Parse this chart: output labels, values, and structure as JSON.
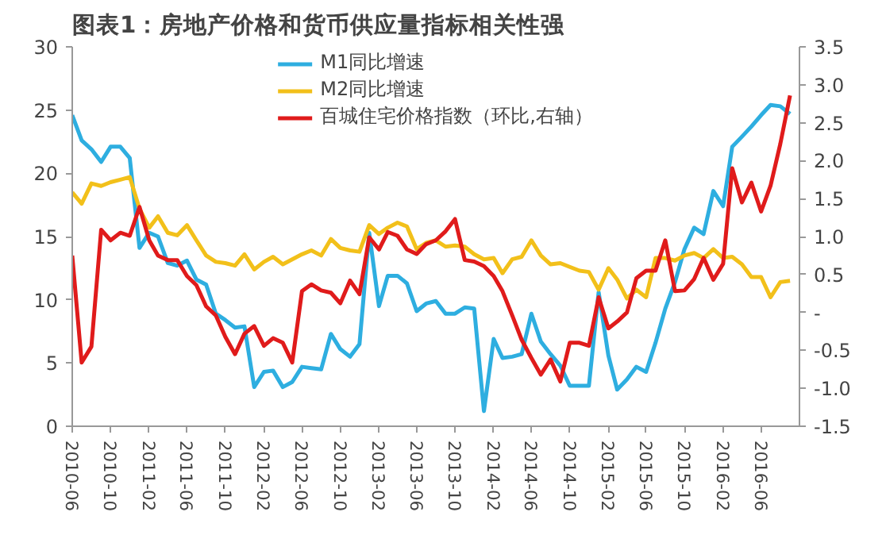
{
  "chart_data": {
    "type": "line",
    "title": "图表1：房地产价格和货币供应量指标相关性强",
    "x": [
      "2010-06",
      "2010-07",
      "2010-08",
      "2010-09",
      "2010-10",
      "2010-11",
      "2010-12",
      "2011-01",
      "2011-02",
      "2011-03",
      "2011-04",
      "2011-05",
      "2011-06",
      "2011-07",
      "2011-08",
      "2011-09",
      "2011-10",
      "2011-11",
      "2011-12",
      "2012-01",
      "2012-02",
      "2012-03",
      "2012-04",
      "2012-05",
      "2012-06",
      "2012-07",
      "2012-08",
      "2012-09",
      "2012-10",
      "2012-11",
      "2012-12",
      "2013-01",
      "2013-02",
      "2013-03",
      "2013-04",
      "2013-05",
      "2013-06",
      "2013-07",
      "2013-08",
      "2013-09",
      "2013-10",
      "2013-11",
      "2013-12",
      "2014-01",
      "2014-02",
      "2014-03",
      "2014-04",
      "2014-05",
      "2014-06",
      "2014-07",
      "2014-08",
      "2014-09",
      "2014-10",
      "2014-11",
      "2014-12",
      "2015-01",
      "2015-02",
      "2015-03",
      "2015-04",
      "2015-05",
      "2015-06",
      "2015-07",
      "2015-08",
      "2015-09",
      "2015-10",
      "2015-11",
      "2015-12",
      "2016-01",
      "2016-02",
      "2016-03",
      "2016-04",
      "2016-05",
      "2016-06",
      "2016-07",
      "2016-08",
      "2016-09"
    ],
    "series": [
      {
        "name": "M1同比增速",
        "color": "#2eaee0",
        "values": [
          24.6,
          22.6,
          21.9,
          20.9,
          22.1,
          22.1,
          21.2,
          14.1,
          15.3,
          15.0,
          12.9,
          12.7,
          13.1,
          11.6,
          11.2,
          8.9,
          8.4,
          7.8,
          7.9,
          3.1,
          4.3,
          4.4,
          3.1,
          3.5,
          4.7,
          4.6,
          4.5,
          7.3,
          6.1,
          5.5,
          6.5,
          15.3,
          9.5,
          11.9,
          11.9,
          11.3,
          9.1,
          9.7,
          9.9,
          8.9,
          8.9,
          9.4,
          9.3,
          1.2,
          6.9,
          5.4,
          5.5,
          5.7,
          8.9,
          6.7,
          5.7,
          4.8,
          3.2,
          3.2,
          3.2,
          10.6,
          5.6,
          2.9,
          3.7,
          4.7,
          4.3,
          6.6,
          9.3,
          11.4,
          14.0,
          15.7,
          15.2,
          18.6,
          17.4,
          22.1,
          22.9,
          23.7,
          24.6,
          25.4,
          25.3,
          24.7
        ]
      },
      {
        "name": "M2同比增速",
        "color": "#f2c01a",
        "values": [
          18.5,
          17.6,
          19.2,
          19.0,
          19.3,
          19.5,
          19.7,
          17.2,
          15.7,
          16.6,
          15.3,
          15.1,
          15.9,
          14.7,
          13.5,
          13.0,
          12.9,
          12.7,
          13.6,
          12.4,
          13.0,
          13.4,
          12.8,
          13.2,
          13.6,
          13.9,
          13.5,
          14.8,
          14.1,
          13.9,
          13.8,
          15.9,
          15.2,
          15.7,
          16.1,
          15.8,
          14.0,
          14.5,
          14.7,
          14.2,
          14.3,
          14.2,
          13.6,
          13.2,
          13.3,
          12.1,
          13.2,
          13.4,
          14.7,
          13.5,
          12.8,
          12.9,
          12.6,
          12.3,
          12.2,
          10.8,
          12.5,
          11.6,
          10.1,
          10.8,
          10.2,
          13.3,
          13.3,
          13.1,
          13.5,
          13.7,
          13.3,
          14.0,
          13.3,
          13.4,
          12.8,
          11.8,
          11.8,
          10.2,
          11.4,
          11.5
        ]
      },
      {
        "name": "百城住宅价格指数（环比,右轴）",
        "color": "#e01b1b",
        "axis": "y2",
        "values": [
          0.75,
          -0.66,
          -0.45,
          1.09,
          0.95,
          1.05,
          1.01,
          1.39,
          0.95,
          0.75,
          0.69,
          0.69,
          0.48,
          0.36,
          0.08,
          -0.04,
          -0.32,
          -0.55,
          -0.28,
          -0.18,
          -0.44,
          -0.34,
          -0.4,
          -0.66,
          0.28,
          0.37,
          0.29,
          0.26,
          0.12,
          0.42,
          0.24,
          0.99,
          0.83,
          1.06,
          1.01,
          0.83,
          0.77,
          0.9,
          0.95,
          1.07,
          1.23,
          0.69,
          0.67,
          0.61,
          0.48,
          0.28,
          -0.04,
          -0.36,
          -0.6,
          -0.82,
          -0.62,
          -0.91,
          -0.4,
          -0.4,
          -0.44,
          0.2,
          -0.21,
          -0.12,
          0.0,
          0.45,
          0.55,
          0.55,
          0.95,
          0.28,
          0.29,
          0.44,
          0.72,
          0.43,
          0.64,
          1.9,
          1.45,
          1.71,
          1.33,
          1.67,
          2.22,
          2.86
        ]
      }
    ],
    "xlim": [
      "2010-06",
      "2016-10"
    ],
    "xticks": [
      "2010-06",
      "2010-10",
      "2011-02",
      "2011-06",
      "2011-10",
      "2012-02",
      "2012-06",
      "2012-10",
      "2013-02",
      "2013-06",
      "2013-10",
      "2014-02",
      "2014-06",
      "2014-10",
      "2015-02",
      "2015-06",
      "2015-10",
      "2016-02",
      "2016-06"
    ],
    "ylim": [
      0,
      30
    ],
    "yticks": [
      0,
      5,
      10,
      15,
      20,
      25,
      30
    ],
    "y2lim": [
      -1.5,
      3.5
    ],
    "y2ticks": [
      {
        "value": -1.5,
        "label": "-1.5"
      },
      {
        "value": -1.0,
        "label": "-1.0"
      },
      {
        "value": -0.5,
        "label": "-0.5"
      },
      {
        "value": 0,
        "label": "-"
      },
      {
        "value": 0.5,
        "label": "0.5"
      },
      {
        "value": 1.0,
        "label": "1.0"
      },
      {
        "value": 1.5,
        "label": "1.5"
      },
      {
        "value": 2.0,
        "label": "2.0"
      },
      {
        "value": 2.5,
        "label": "2.5"
      },
      {
        "value": 3.0,
        "label": "3.0"
      },
      {
        "value": 3.5,
        "label": "3.5"
      }
    ],
    "grid": false,
    "legend": "top",
    "line_style": "solid"
  }
}
